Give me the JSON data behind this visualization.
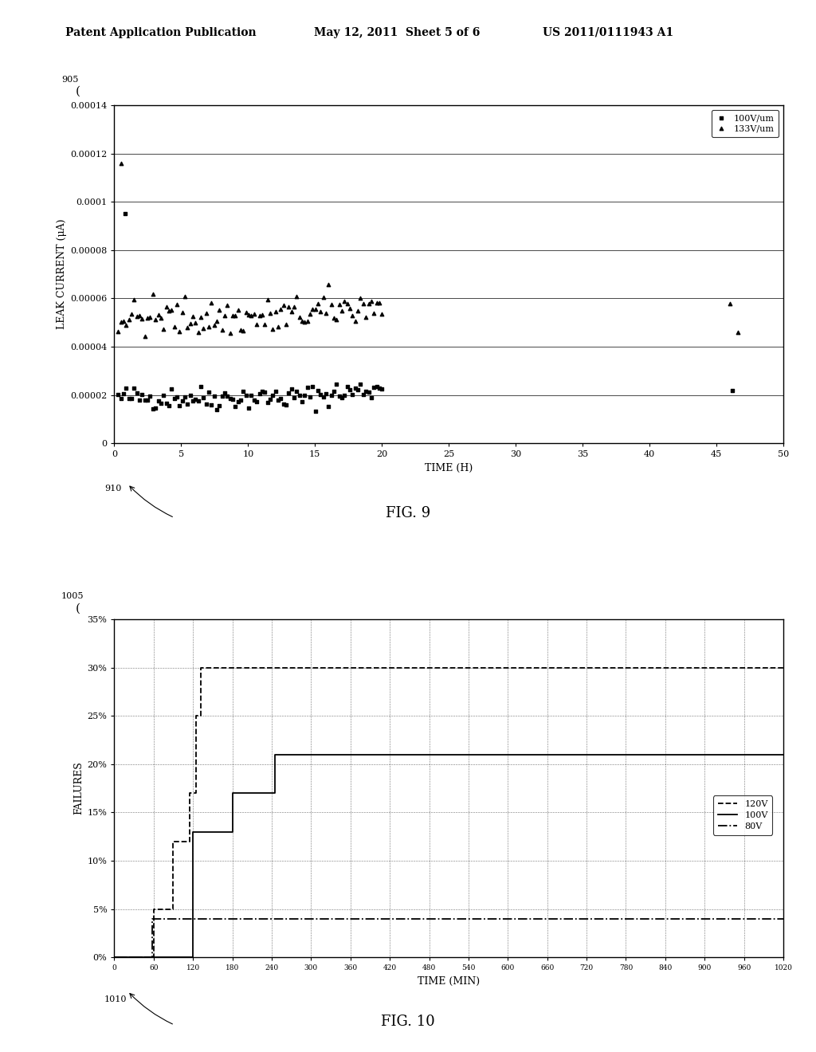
{
  "header_left": "Patent Application Publication",
  "header_center": "May 12, 2011  Sheet 5 of 6",
  "header_right": "US 2011/0111943 A1",
  "fig9": {
    "xlabel": "TIME (H)",
    "ylabel": "LEAK CURRENT (μA)",
    "xlim": [
      0,
      50
    ],
    "ylim": [
      0,
      0.00014
    ],
    "xticks": [
      0,
      5,
      10,
      15,
      20,
      25,
      30,
      35,
      40,
      45,
      50
    ],
    "yticks": [
      0,
      2e-05,
      4e-05,
      6e-05,
      8e-05,
      0.0001,
      0.00012,
      0.00014
    ],
    "ytick_labels": [
      "0",
      "0.00002",
      "0.00004",
      "0.00006",
      "0.00008",
      "0.0001",
      "0.00012",
      "0.00014"
    ],
    "series1_label": "100V/um",
    "series2_label": "133V/um"
  },
  "fig10": {
    "xlabel": "TIME (MIN)",
    "ylabel": "FAILURES",
    "xlim": [
      0,
      1020
    ],
    "ylim": [
      0,
      35
    ],
    "xticks": [
      0,
      60,
      120,
      180,
      240,
      300,
      360,
      420,
      480,
      540,
      600,
      660,
      720,
      780,
      840,
      900,
      960,
      1020
    ],
    "ytick_vals": [
      0,
      5,
      10,
      15,
      20,
      25,
      30,
      35
    ],
    "ytick_labels": [
      "0%",
      "5%",
      "10%",
      "15%",
      "20%",
      "25%",
      "30%",
      "35%"
    ],
    "t_120": [
      0,
      60,
      60,
      90,
      90,
      110,
      110,
      120,
      120,
      130,
      130,
      1020
    ],
    "v_120": [
      0,
      0,
      5,
      5,
      12,
      12,
      17,
      17,
      25,
      25,
      30,
      30
    ],
    "t_100": [
      0,
      120,
      120,
      180,
      180,
      250,
      250,
      1020
    ],
    "v_100": [
      0,
      0,
      13,
      13,
      17,
      17,
      21,
      21
    ],
    "t_80": [
      0,
      60,
      60,
      1020
    ],
    "v_80": [
      0,
      0,
      4,
      4
    ],
    "series_120V_label": "120V",
    "series_100V_label": "100V",
    "series_80V_label": "80V"
  }
}
